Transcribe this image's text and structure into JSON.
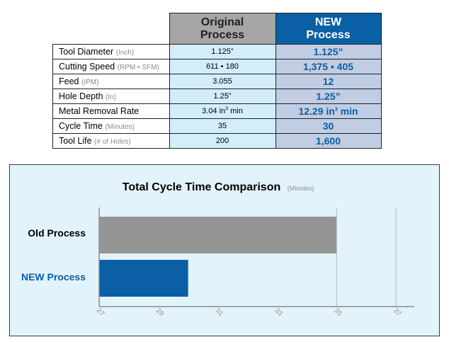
{
  "table": {
    "headers": {
      "original": [
        "Original",
        "Process"
      ],
      "new": [
        "NEW",
        "Process"
      ]
    },
    "rows": [
      {
        "label": "Tool Diameter",
        "unit": "(Inch)",
        "original": "1.125”",
        "new": "1.125”"
      },
      {
        "label": "Cutting Speed",
        "unit": "(RPM • SFM)",
        "original": "611 • 180",
        "new": "1,375 • 405"
      },
      {
        "label": "Feed",
        "unit": "(IPM)",
        "original": "3.055",
        "new": "12"
      },
      {
        "label": "Hole Depth",
        "unit": "(In)",
        "original": "1.25”",
        "new": "1.25”"
      },
      {
        "label": "Metal Removal Rate",
        "unit": "",
        "original": "3.04 in",
        "original_sup": "3",
        "original_suffix": " min",
        "new": "12.29 in",
        "new_sup": "3",
        "new_suffix": " min"
      },
      {
        "label": "Cycle Time",
        "unit": "(Minutes)",
        "original": "35",
        "new": "30"
      },
      {
        "label": "Tool Life",
        "unit": "(# of Holes)",
        "original": "200",
        "new": "1,600"
      }
    ]
  },
  "chart_data": {
    "type": "bar",
    "orientation": "horizontal",
    "title": "Total Cycle Time Comparison",
    "title_unit": "(Minutes)",
    "categories": [
      "Old Process",
      "NEW Process"
    ],
    "values": [
      35,
      30
    ],
    "colors": [
      "#959595",
      "#0b5fa5"
    ],
    "category_label_colors": [
      "#000000",
      "#0b5fa5"
    ],
    "xlim": [
      27,
      37
    ],
    "xticks": [
      "27",
      "29",
      "31",
      "33",
      "35",
      "37"
    ],
    "tick_values": [
      27,
      29,
      31,
      33,
      35,
      37
    ],
    "grid": true,
    "gridline_values": [
      35,
      37
    ],
    "legend": "none"
  }
}
